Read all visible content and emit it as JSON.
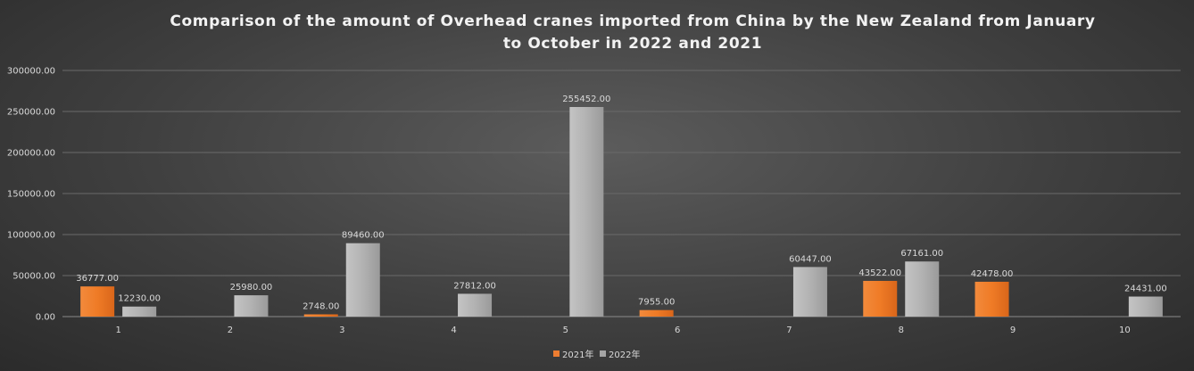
{
  "chart_data": {
    "type": "bar",
    "title": "Comparison of the amount of Overhead cranes imported from China by the New Zealand from January to October in 2022 and 2021",
    "title_lines": [
      "Comparison of the amount of Overhead cranes imported from China by the New Zealand from January",
      "to October in 2022 and 2021"
    ],
    "categories": [
      "1",
      "2",
      "3",
      "4",
      "5",
      "6",
      "7",
      "8",
      "9",
      "10"
    ],
    "series": [
      {
        "name": "2021年",
        "color": "#ed7d31",
        "values": [
          36777.0,
          null,
          2748.0,
          null,
          null,
          7955.0,
          null,
          43522.0,
          42478.0,
          null
        ],
        "labels": [
          "36777.00",
          "",
          "2748.00",
          "",
          "",
          "7955.00",
          "",
          "43522.00",
          "42478.00",
          ""
        ]
      },
      {
        "name": "2022年",
        "color": "#a5a5a5",
        "values": [
          12230.0,
          25980.0,
          89460.0,
          27812.0,
          255452.0,
          null,
          60447.0,
          67161.0,
          null,
          24431.0
        ],
        "labels": [
          "12230.00",
          "25980.00",
          "89460.00",
          "27812.00",
          "255452.00",
          "",
          "60447.00",
          "67161.00",
          "",
          "24431.00"
        ]
      }
    ],
    "ylim": [
      0,
      300000
    ],
    "yticks": [
      "0.00",
      "50000.00",
      "100000.00",
      "150000.00",
      "200000.00",
      "250000.00",
      "300000.00"
    ],
    "ytick_values": [
      0,
      50000,
      100000,
      150000,
      200000,
      250000,
      300000
    ],
    "xlabel": "",
    "ylabel": "",
    "grid": true,
    "legend_position": "bottom"
  }
}
